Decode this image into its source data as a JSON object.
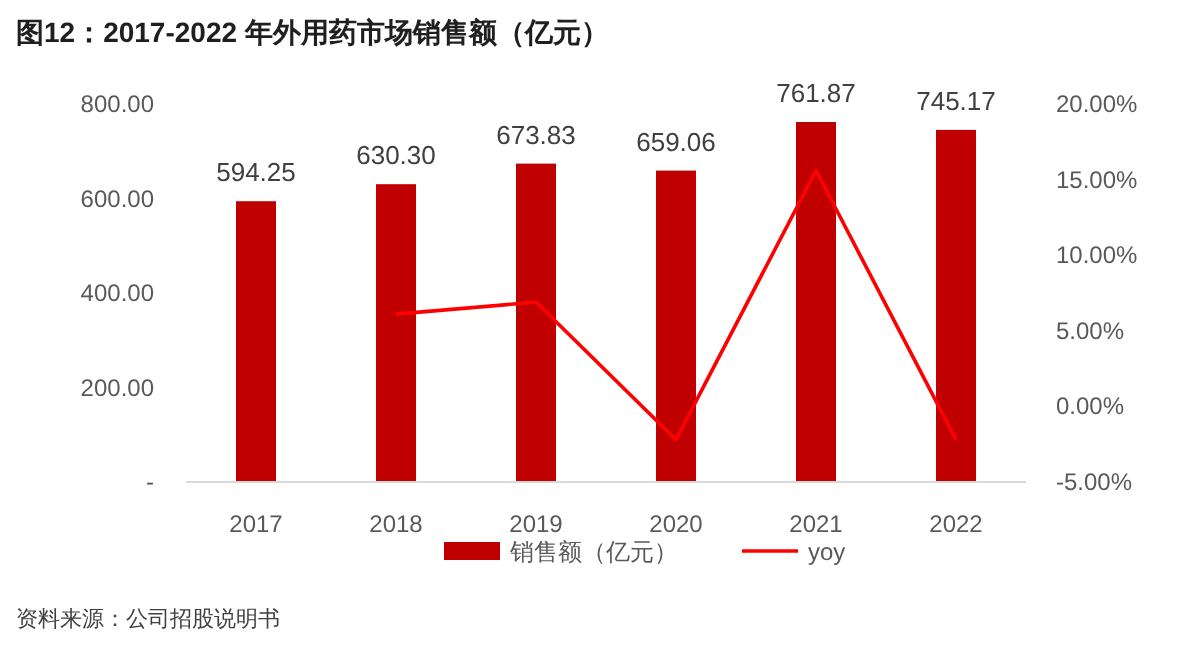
{
  "chart_data": {
    "type": "bar",
    "title": "图12：2017-2022 年外用药市场销售额（亿元）",
    "categories": [
      "2017",
      "2018",
      "2019",
      "2020",
      "2021",
      "2022"
    ],
    "series": [
      {
        "name": "销售额（亿元）",
        "color": "#c00000",
        "values": [
          594.25,
          630.3,
          673.83,
          659.06,
          761.87,
          745.17
        ],
        "value_labels": [
          "594.25",
          "630.30",
          "673.83",
          "659.06",
          "761.87",
          "745.17"
        ]
      },
      {
        "name": "yoy",
        "type": "line",
        "axis": "y2",
        "color": "#ff0000",
        "values": [
          null,
          6.1,
          6.9,
          -2.2,
          15.6,
          -2.2
        ]
      }
    ],
    "ylim": [
      0,
      800
    ],
    "yticks": [
      {
        "value": 0,
        "label": "-"
      },
      {
        "value": 200,
        "label": "200.00"
      },
      {
        "value": 400,
        "label": "400.00"
      },
      {
        "value": 600,
        "label": "600.00"
      },
      {
        "value": 800,
        "label": "800.00"
      }
    ],
    "y2lim": [
      -5,
      20
    ],
    "y2ticks": [
      {
        "value": -5,
        "label": "-5.00%"
      },
      {
        "value": 0,
        "label": "0.00%"
      },
      {
        "value": 5,
        "label": "5.00%"
      },
      {
        "value": 10,
        "label": "10.00%"
      },
      {
        "value": 15,
        "label": "15.00%"
      },
      {
        "value": 20,
        "label": "20.00%"
      }
    ],
    "legend": "bottom",
    "marker": "none",
    "line_style": "solid",
    "annotations": [
      "资料来源：公司招股说明书"
    ]
  }
}
